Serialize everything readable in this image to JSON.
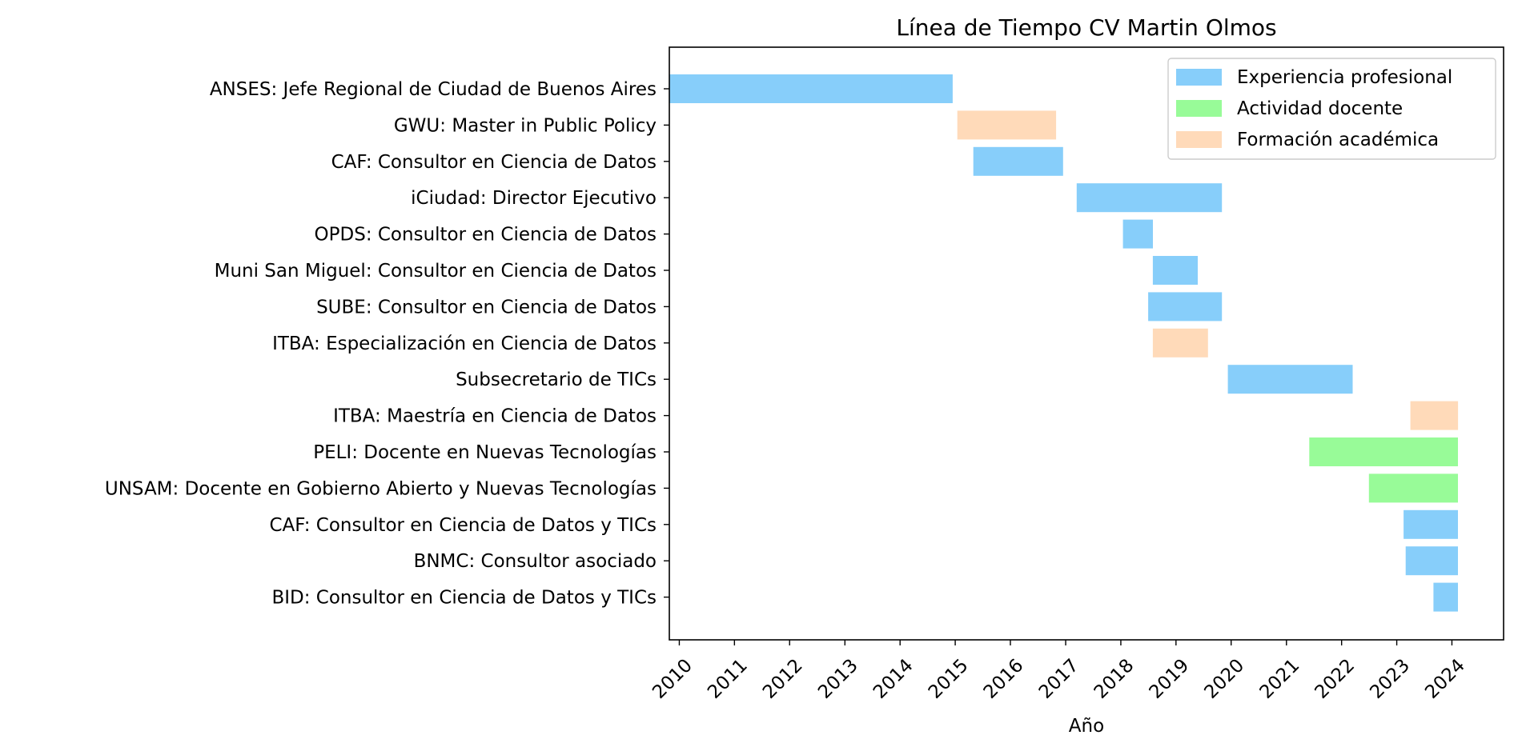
{
  "chart_data": {
    "type": "bar",
    "orientation": "horizontal",
    "title": "Línea de Tiempo CV Martin Olmos",
    "xlabel": "Año",
    "ylabel": "",
    "xlim": [
      "2009-10-27",
      "2024-12-08"
    ],
    "x_ticks": [
      "2010",
      "2011",
      "2012",
      "2013",
      "2014",
      "2015",
      "2016",
      "2017",
      "2018",
      "2019",
      "2020",
      "2021",
      "2022",
      "2023",
      "2024"
    ],
    "grid": false,
    "legend_position": "upper right",
    "legend": [
      {
        "category": "experiencia",
        "label": "Experiencia profesional",
        "color": "#87CEFA"
      },
      {
        "category": "docente",
        "label": "Actividad docente",
        "color": "#98FB98"
      },
      {
        "category": "formacion",
        "label": "Formación académica",
        "color": "#FFDAB9"
      }
    ],
    "items": [
      {
        "label": "ANSES: Jefe Regional de Ciudad de Buenos Aires",
        "start": "2009-10-27",
        "end": "2014-12-15",
        "category": "experiencia"
      },
      {
        "label": "GWU: Master in Public Policy",
        "start": "2015-01-15",
        "end": "2016-10-30",
        "category": "formacion"
      },
      {
        "label": "CAF: Consultor en Ciencia de Datos",
        "start": "2015-05-01",
        "end": "2016-12-15",
        "category": "experiencia"
      },
      {
        "label": "iCiudad: Director Ejecutivo",
        "start": "2017-03-15",
        "end": "2019-11-01",
        "category": "experiencia"
      },
      {
        "label": "OPDS: Consultor en Ciencia de Datos",
        "start": "2018-01-15",
        "end": "2018-08-01",
        "category": "experiencia"
      },
      {
        "label": "Muni San Miguel: Consultor en Ciencia de Datos",
        "start": "2018-08-01",
        "end": "2019-05-25",
        "category": "experiencia"
      },
      {
        "label": "SUBE: Consultor en Ciencia de Datos",
        "start": "2018-07-01",
        "end": "2019-11-01",
        "category": "experiencia"
      },
      {
        "label": "ITBA: Especialización en Ciencia de Datos",
        "start": "2018-08-01",
        "end": "2019-08-01",
        "category": "formacion"
      },
      {
        "label": "Subsecretario de TICs",
        "start": "2019-12-10",
        "end": "2022-03-15",
        "category": "experiencia"
      },
      {
        "label": "ITBA: Maestría en Ciencia de Datos",
        "start": "2023-04-01",
        "end": "2024-02-10",
        "category": "formacion"
      },
      {
        "label": "PELI: Docente en Nuevas Tecnologías",
        "start": "2021-06-01",
        "end": "2024-02-10",
        "category": "docente"
      },
      {
        "label": "UNSAM: Docente en Gobierno Abierto y Nuevas Tecnologías",
        "start": "2022-07-01",
        "end": "2024-02-10",
        "category": "docente"
      },
      {
        "label": "CAF: Consultor en Ciencia de Datos y TICs",
        "start": "2023-02-15",
        "end": "2024-02-10",
        "category": "experiencia"
      },
      {
        "label": "BNMC: Consultor asociado",
        "start": "2023-03-01",
        "end": "2024-02-10",
        "category": "experiencia"
      },
      {
        "label": "BID: Consultor en Ciencia de Datos y TICs",
        "start": "2023-09-01",
        "end": "2024-02-10",
        "category": "experiencia"
      }
    ]
  }
}
